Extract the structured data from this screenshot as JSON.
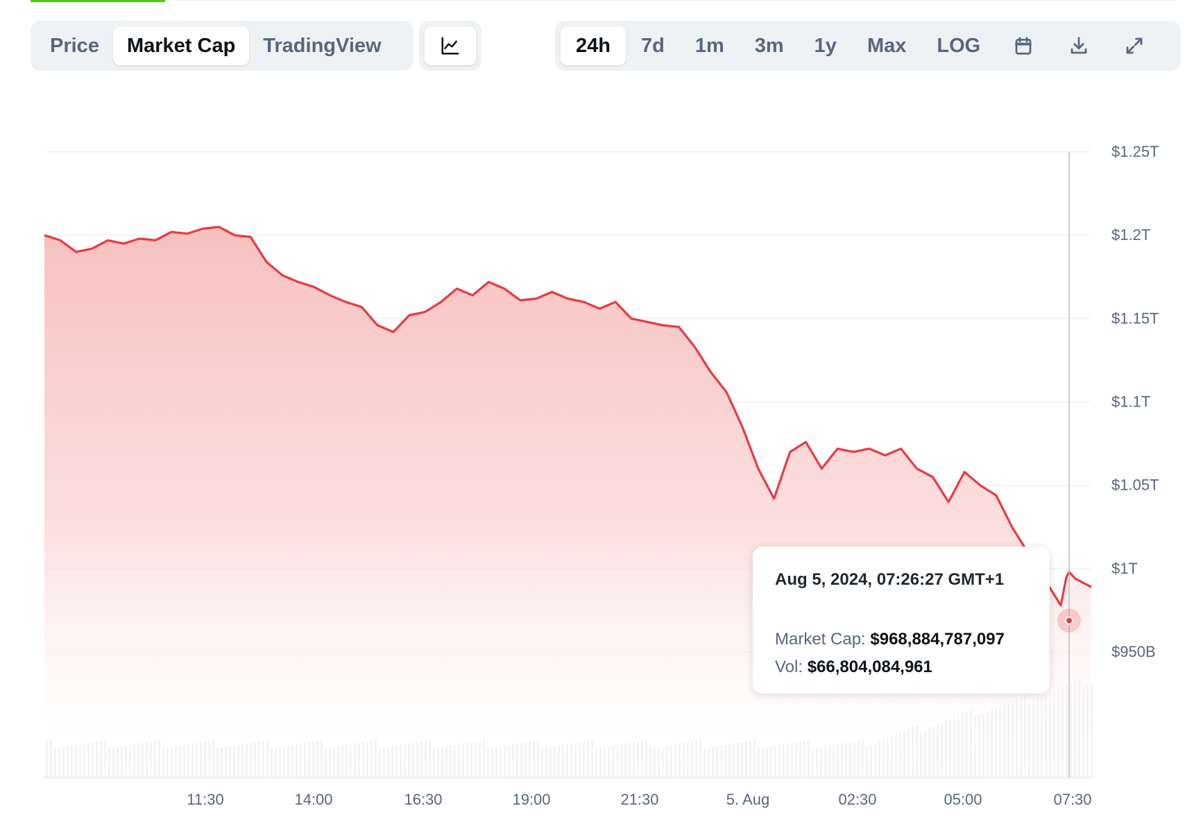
{
  "toolbar": {
    "views": [
      {
        "label": "Price",
        "active": false
      },
      {
        "label": "Market Cap",
        "active": true
      },
      {
        "label": "TradingView",
        "active": false
      }
    ],
    "chart_type_icon": "line-chart-icon",
    "ranges": [
      {
        "label": "24h",
        "active": true
      },
      {
        "label": "7d",
        "active": false
      },
      {
        "label": "1m",
        "active": false
      },
      {
        "label": "3m",
        "active": false
      },
      {
        "label": "1y",
        "active": false
      },
      {
        "label": "Max",
        "active": false
      },
      {
        "label": "LOG",
        "active": false
      }
    ],
    "icons": [
      "calendar-icon",
      "download-icon",
      "fullscreen-icon"
    ]
  },
  "tooltip": {
    "date": "Aug 5, 2024, 07:26:27 GMT+1",
    "market_cap_label": "Market Cap:",
    "market_cap_value": "$968,884,787,097",
    "vol_label": "Vol:",
    "vol_value": "$66,804,084,961"
  },
  "colors": {
    "line": "#ea3943",
    "area_top": "#f6c1bf",
    "accent_green": "#4bcc00",
    "muted_text": "#58667e"
  },
  "chart_data": {
    "type": "area",
    "title": "",
    "xlabel": "",
    "ylabel": "",
    "x_ticks": [
      "11:30",
      "14:00",
      "16:30",
      "19:00",
      "21:30",
      "5. Aug",
      "02:30",
      "05:00",
      "07:30"
    ],
    "y_ticks": [
      "$1.25T",
      "$1.2T",
      "$1.15T",
      "$1.1T",
      "$1.05T",
      "$1T",
      "$950B"
    ],
    "ylim_billions": [
      950,
      1250
    ],
    "grid": true,
    "series": [
      {
        "values_billions": [
          1200,
          1197,
          1190,
          1192,
          1197,
          1195,
          1198,
          1197,
          1202,
          1201,
          1204,
          1205,
          1200,
          1199,
          1184,
          1176,
          1172,
          1169,
          1164,
          1160,
          1157,
          1146,
          1142,
          1152,
          1154,
          1160,
          1168,
          1164,
          1172,
          1168,
          1161,
          1162,
          1166,
          1162,
          1160,
          1156,
          1160,
          1150,
          1148,
          1146,
          1145,
          1133,
          1118,
          1106,
          1085,
          1060,
          1042,
          1070,
          1076,
          1060,
          1072,
          1070,
          1072,
          1068,
          1072,
          1060,
          1055,
          1040,
          1058,
          1050,
          1044,
          1025,
          978,
          995,
          998,
          994,
          989
        ],
        "point_count": 67
      }
    ],
    "hover": {
      "time": "07:26",
      "value_billions": 968.88
    }
  }
}
